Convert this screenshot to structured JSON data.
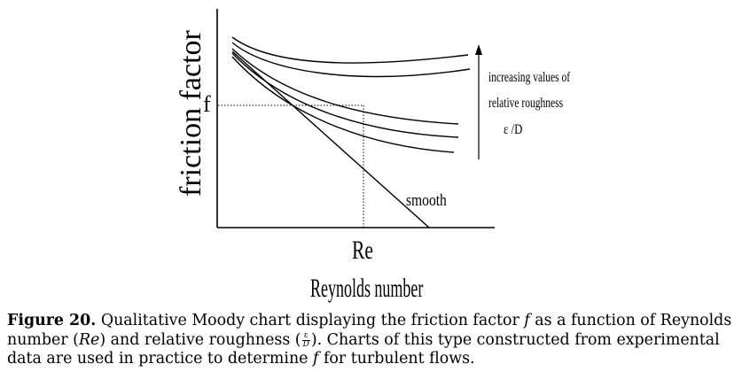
{
  "diagram": {
    "y_axis_label": "friction factor",
    "y_marker": "f",
    "x_marker": "Re",
    "x_axis_label": "Reynolds number",
    "smooth_label": "smooth",
    "annotation": {
      "line1": "increasing values of",
      "line2": "relative roughness",
      "line3": "ε /D"
    }
  },
  "caption": {
    "label": "Figure 20.",
    "part1": "Qualitative Moody chart displaying the friction factor",
    "f1": "f",
    "part2": "as a function of Reynolds number (",
    "re": "Re",
    "part3": ") and relative roughness (",
    "frac_num": "ε",
    "frac_den": "D",
    "part4": "). Charts of this type constructed from experimental data are used in practice to determine",
    "f2": "f",
    "part5": "for turbulent flows."
  }
}
